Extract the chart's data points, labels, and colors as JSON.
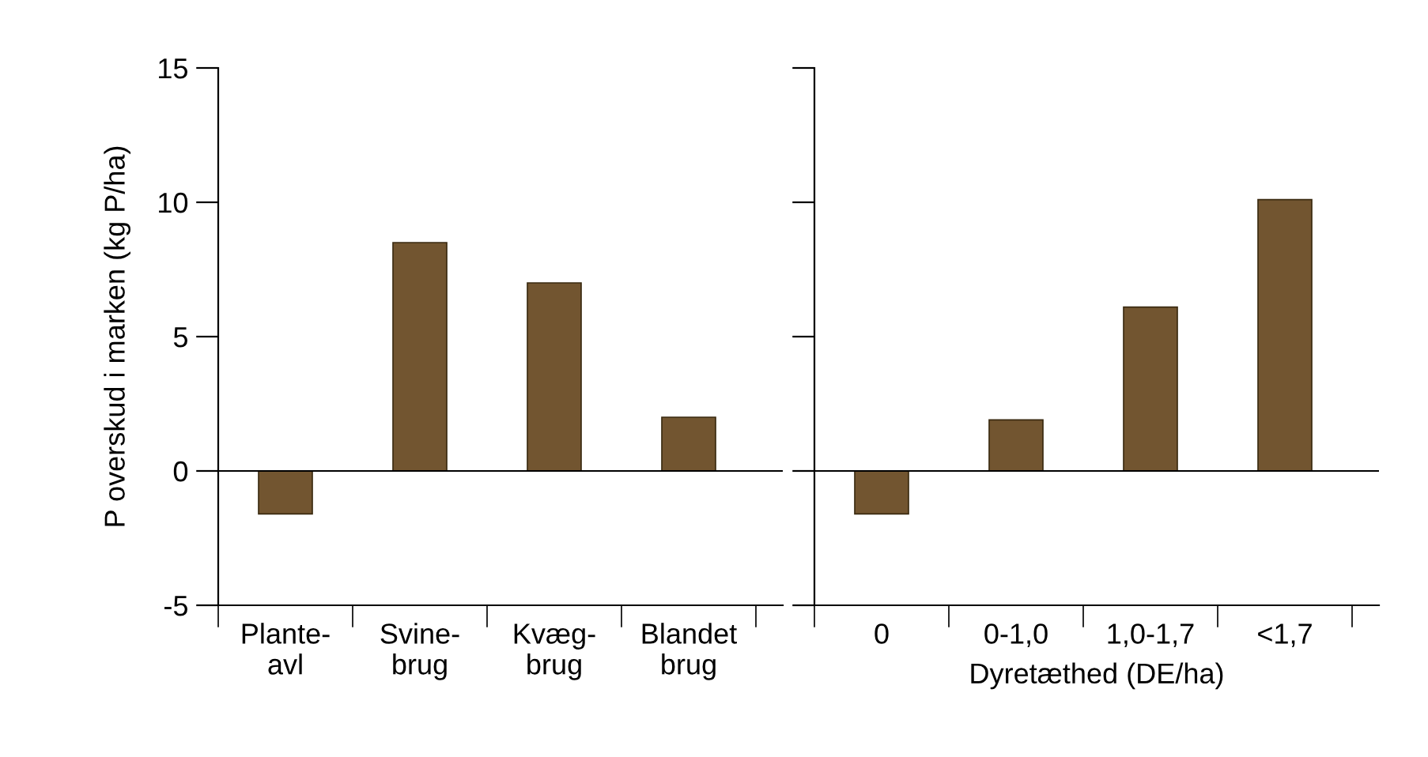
{
  "chart_data": [
    {
      "type": "bar",
      "ylabel": "P overskud i marken (kg P/ha)",
      "categories": [
        "Plante-\navl",
        "Svine-\nbrug",
        "Kvæg-\nbrug",
        "Blandet\nbrug"
      ],
      "values": [
        -1.6,
        8.5,
        7.0,
        2.0
      ],
      "color": "#725530",
      "ylim": [
        -5,
        15
      ],
      "yticks": [
        -5,
        0,
        5,
        10,
        15
      ],
      "grid": false,
      "ref_lines": [
        {
          "axis": "y",
          "value": 0,
          "label": null,
          "color": "#000000"
        }
      ]
    },
    {
      "type": "bar",
      "xlabel": "Dyretæthed (DE/ha)",
      "categories": [
        "0",
        "0-1,0",
        "1,0-1,7",
        "<1,7"
      ],
      "values": [
        -1.6,
        1.9,
        6.1,
        10.1
      ],
      "color": "#725530",
      "ylim": [
        -5,
        15
      ],
      "yticks": [
        -5,
        0,
        5,
        10,
        15
      ],
      "grid": false,
      "tick_labels": "x",
      "ref_lines": [
        {
          "axis": "y",
          "value": 0,
          "label": null,
          "color": "#000000"
        }
      ]
    }
  ]
}
